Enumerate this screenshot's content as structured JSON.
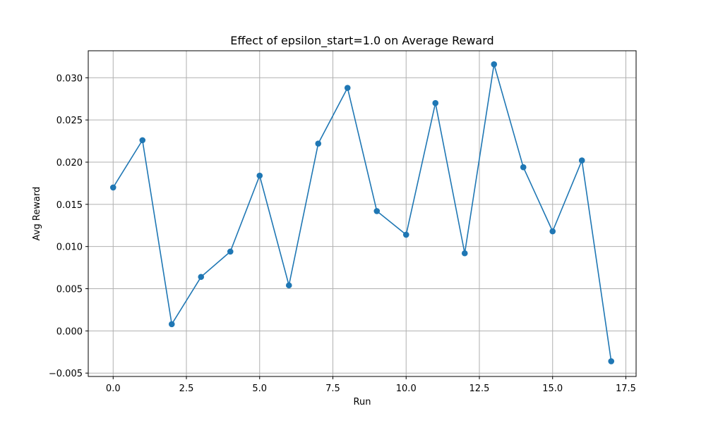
{
  "chart_data": {
    "type": "line",
    "title": "Effect of epsilon_start=1.0 on Average Reward",
    "xlabel": "Run",
    "ylabel": "Avg Reward",
    "grid": true,
    "marker": "circle",
    "color": "#1f77b4",
    "xlim": [
      -0.85,
      17.85
    ],
    "ylim": [
      -0.0054,
      0.0332
    ],
    "x_ticks": [
      0.0,
      2.5,
      5.0,
      7.5,
      10.0,
      12.5,
      15.0,
      17.5
    ],
    "x_tick_labels": [
      "0.0",
      "2.5",
      "5.0",
      "7.5",
      "10.0",
      "12.5",
      "15.0",
      "17.5"
    ],
    "y_ticks": [
      -0.005,
      0.0,
      0.005,
      0.01,
      0.015,
      0.02,
      0.025,
      0.03
    ],
    "y_tick_labels": [
      "−0.005",
      "0.000",
      "0.005",
      "0.010",
      "0.015",
      "0.020",
      "0.025",
      "0.030"
    ],
    "series": [
      {
        "x": [
          0,
          1,
          2,
          3,
          4,
          5,
          6,
          7,
          8,
          9,
          10,
          11,
          12,
          13,
          14,
          15,
          16,
          17
        ],
        "values": [
          0.017,
          0.0226,
          0.0008,
          0.0064,
          0.0094,
          0.0184,
          0.0054,
          0.0222,
          0.0288,
          0.0142,
          0.0114,
          0.027,
          0.0092,
          0.0316,
          0.0194,
          0.0118,
          0.0202,
          -0.0036
        ]
      }
    ]
  }
}
